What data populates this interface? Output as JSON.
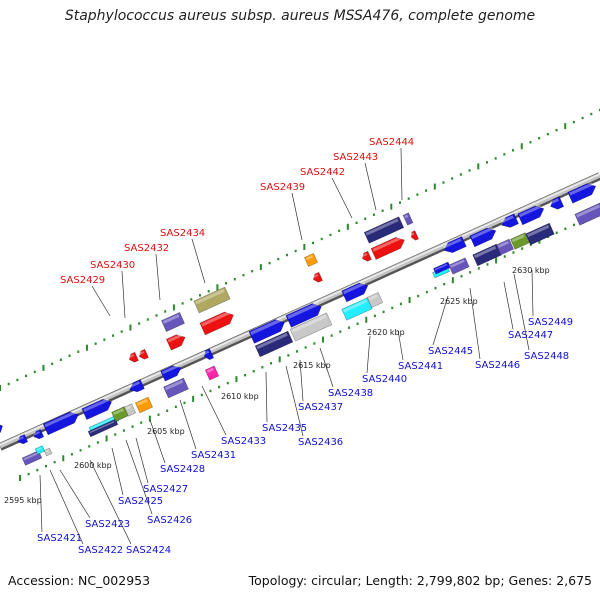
{
  "title": "Staphylococcus aureus subsp. aureus MSSA476, complete genome",
  "accession": "Accession: NC_002953",
  "summary": "Topology: circular; Length: 2,799,802 bp; Genes: 2,675",
  "kbp_ticks": [
    "2595 kbp",
    "2600 kbp",
    "2605 kbp",
    "2610 kbp",
    "2615 kbp",
    "2620 kbp",
    "2625 kbp",
    "2630 kbp"
  ],
  "upper_labels": [
    "SAS2429",
    "SAS2430",
    "SAS2432",
    "SAS2434",
    "SAS2439",
    "SAS2442",
    "SAS2443",
    "SAS2444"
  ],
  "lower_labels": [
    "SAS2421",
    "SAS2422",
    "SAS2423",
    "SAS2424",
    "SAS2425",
    "SAS2426",
    "SAS2427",
    "SAS2428",
    "SAS2431",
    "SAS2433",
    "SAS2435",
    "SAS2436",
    "SAS2437",
    "SAS2438",
    "SAS2440",
    "SAS2441",
    "SAS2445",
    "SAS2446",
    "SAS2447",
    "SAS2448",
    "SAS2449"
  ],
  "colors": {
    "backbone": "#888888",
    "label_upper": "#e01010",
    "label_lower": "#1010d0",
    "gene_blue": "#1515e0",
    "gene_red": "#ee1111",
    "gene_purple": "#6655bb",
    "gene_navy": "#2a2a7a",
    "gene_grey": "#c8c8c8",
    "gene_cyan": "#22eeff",
    "gene_orange": "#ff9900",
    "gene_olive": "#b0a860",
    "gene_green": "#6a9a2a",
    "gene_magenta": "#ff22aa",
    "dots": "#2a8a2a"
  }
}
